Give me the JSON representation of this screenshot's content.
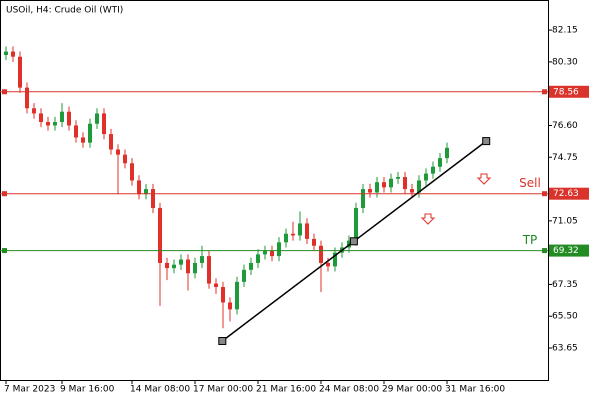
{
  "chart_data": {
    "type": "candlestick",
    "title": "USOil, H4:  Crude Oil (WTI)",
    "categories": [
      "7 Mar 2023",
      null,
      null,
      null,
      null,
      null,
      null,
      null,
      "9 Mar 16:00",
      null,
      null,
      null,
      null,
      null,
      null,
      null,
      null,
      null,
      "14 Mar 08:00",
      null,
      null,
      null,
      null,
      null,
      null,
      null,
      null,
      "17 Mar 00:00",
      null,
      null,
      null,
      null,
      null,
      null,
      null,
      null,
      "21 Mar 16:00",
      null,
      null,
      null,
      null,
      null,
      null,
      null,
      null,
      "24 Mar 08:00",
      null,
      null,
      null,
      null,
      null,
      null,
      null,
      null,
      "29 Mar 00:00",
      null,
      null,
      null,
      null,
      null,
      null,
      null,
      null,
      "31 Mar 16:00"
    ],
    "open": [
      80.7,
      80.9,
      80.6,
      78.8,
      77.6,
      77.3,
      76.8,
      76.6,
      76.8,
      77.4,
      76.6,
      75.9,
      75.6,
      76.7,
      77.3,
      76.1,
      75.2,
      74.9,
      74.4,
      73.4,
      72.6,
      72.9,
      71.8,
      68.6,
      68.3,
      68.5,
      68.8,
      68.0,
      68.6,
      69.0,
      67.4,
      67.2,
      66.3,
      65.9,
      67.5,
      68.2,
      68.6,
      69.1,
      69.3,
      69.0,
      69.8,
      70.3,
      70.2,
      70.9,
      70.0,
      69.6,
      68.6,
      68.4,
      69.2,
      69.5,
      69.9,
      71.8,
      72.9,
      72.7,
      73.3,
      73.0,
      73.5,
      73.6,
      72.9,
      72.7,
      73.4,
      73.8,
      74.2,
      74.7
    ],
    "high": [
      81.2,
      81.2,
      80.9,
      79.1,
      77.9,
      77.6,
      77.1,
      77.1,
      77.9,
      77.7,
      76.9,
      76.2,
      77.0,
      77.6,
      77.6,
      76.4,
      75.5,
      75.2,
      74.7,
      73.7,
      73.2,
      73.2,
      72.1,
      68.9,
      68.8,
      69.1,
      69.1,
      68.9,
      69.6,
      69.3,
      67.7,
      67.5,
      66.6,
      67.8,
      68.5,
      68.9,
      69.4,
      69.6,
      69.6,
      70.1,
      70.6,
      71.0,
      71.6,
      71.2,
      70.3,
      69.9,
      68.9,
      69.5,
      69.8,
      70.2,
      72.1,
      73.2,
      73.2,
      73.6,
      73.6,
      73.8,
      73.9,
      73.9,
      73.2,
      73.7,
      74.1,
      74.5,
      75.0,
      75.6
    ],
    "low": [
      80.4,
      80.3,
      78.5,
      77.3,
      77.0,
      76.5,
      76.3,
      76.3,
      76.5,
      76.3,
      75.6,
      75.3,
      75.3,
      76.4,
      75.8,
      74.9,
      72.6,
      74.1,
      73.1,
      72.3,
      72.3,
      71.5,
      66.1,
      67.6,
      68.0,
      68.2,
      67.0,
      67.7,
      68.3,
      67.1,
      66.8,
      64.8,
      65.2,
      65.6,
      67.2,
      67.9,
      68.3,
      68.8,
      68.7,
      68.7,
      69.5,
      69.9,
      69.9,
      69.7,
      69.3,
      66.9,
      68.1,
      68.1,
      68.9,
      69.2,
      69.6,
      71.5,
      72.4,
      72.4,
      72.7,
      72.7,
      73.2,
      72.6,
      72.4,
      72.4,
      73.1,
      73.5,
      73.9,
      74.4
    ],
    "close": [
      80.9,
      80.6,
      78.8,
      77.6,
      77.3,
      76.8,
      76.6,
      76.8,
      77.4,
      76.6,
      75.9,
      75.6,
      76.7,
      77.3,
      76.1,
      75.2,
      74.9,
      74.4,
      73.4,
      72.6,
      72.9,
      71.8,
      68.6,
      68.3,
      68.5,
      68.8,
      68.0,
      68.6,
      69.0,
      67.4,
      67.2,
      66.3,
      65.9,
      67.5,
      68.2,
      68.6,
      69.1,
      69.3,
      69.0,
      69.8,
      70.3,
      70.2,
      70.9,
      70.0,
      69.6,
      68.6,
      68.4,
      69.2,
      69.5,
      69.9,
      71.8,
      72.9,
      72.7,
      73.3,
      73.0,
      73.5,
      73.6,
      72.9,
      72.7,
      73.4,
      73.8,
      74.2,
      74.7,
      75.3
    ],
    "up_color": "#1f9a3a",
    "down_color": "#e0302a",
    "ylim": [
      61.79,
      83.9
    ],
    "yticks": [
      63.65,
      {
        "value": 65.5,
        "label": "65.50"
      },
      67.35,
      71.05,
      74.75,
      {
        "value": 76.6,
        "label": "76.60"
      },
      {
        "value": 80.3,
        "label": "80.30"
      },
      82.15
    ],
    "levels": [
      {
        "value": 78.56,
        "color": "#d9332b"
      },
      {
        "value": 72.63,
        "color": "#d9332b",
        "label": "Sell"
      },
      {
        "value": 69.32,
        "color": "#228b22",
        "label": "TP"
      }
    ],
    "trendline": {
      "x": [
        30.9,
        49.7,
        68.6
      ],
      "values": [
        64.06,
        69.86,
        75.69
      ],
      "color": "#000000"
    }
  }
}
